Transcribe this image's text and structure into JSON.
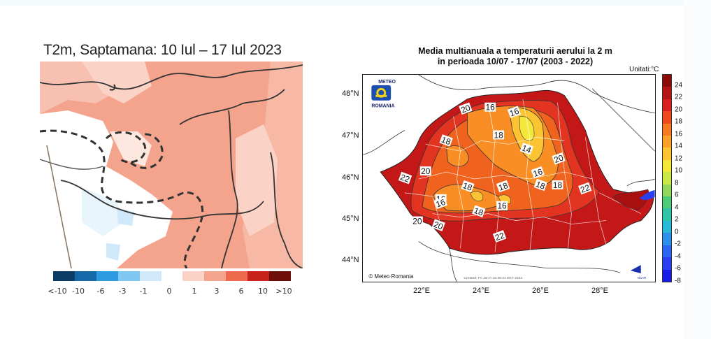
{
  "left_panel": {
    "title": "T2m, Saptamana: 10 Iul – 17 Iul 2023",
    "legend": {
      "colors": [
        "#0b3d66",
        "#1569a8",
        "#2e9be0",
        "#7fc8f2",
        "#cfe9fa",
        "#ffffff",
        "#fbd2c6",
        "#f4a38c",
        "#ee6a4d",
        "#c8231b",
        "#6e0e0a"
      ],
      "ticks": [
        "<-10",
        "-10",
        "-6",
        "-3",
        "-1",
        "0",
        "1",
        "3",
        "6",
        "10",
        ">10"
      ]
    }
  },
  "right_panel": {
    "title_line1": "Media multianuala a temperaturii aerului la 2 m",
    "title_line2": "in perioada 10/07 - 17/07 (2003 - 2022)",
    "units": "Unitati:°C",
    "logo_top": "METEO",
    "logo_bottom": "ROMANIA",
    "copyright": "© Meteo Romania",
    "created": "Created: Fri Jan  6 16:38:24 EET 2023",
    "ncar": "NCAR",
    "lat_labels": [
      "48°N",
      "47°N",
      "46°N",
      "45°N",
      "44°N"
    ],
    "lon_labels": [
      "22°E",
      "24°E",
      "26°E",
      "28°E"
    ],
    "contour_labels": [
      "20",
      "16",
      "18",
      "16",
      "18",
      "14",
      "20",
      "20",
      "22",
      "16",
      "18",
      "18",
      "18",
      "16",
      "18",
      "22",
      "16",
      "18",
      "16",
      "20",
      "20",
      "22"
    ],
    "colorbar": {
      "colors": [
        "#8b0a0a",
        "#b31414",
        "#d92020",
        "#ee4a1e",
        "#f77a22",
        "#fca02a",
        "#fcc433",
        "#f3e83a",
        "#cbe84a",
        "#8fd85a",
        "#4fcb7a",
        "#2fc5a8",
        "#28b8d8",
        "#2a90ea",
        "#2a66ef",
        "#2a40f0",
        "#1a1ae6"
      ],
      "ticks": [
        "24",
        "22",
        "20",
        "18",
        "16",
        "14",
        "12",
        "10",
        "8",
        "6",
        "4",
        "2",
        "0",
        "-2",
        "-4",
        "-6",
        "-8"
      ]
    }
  }
}
